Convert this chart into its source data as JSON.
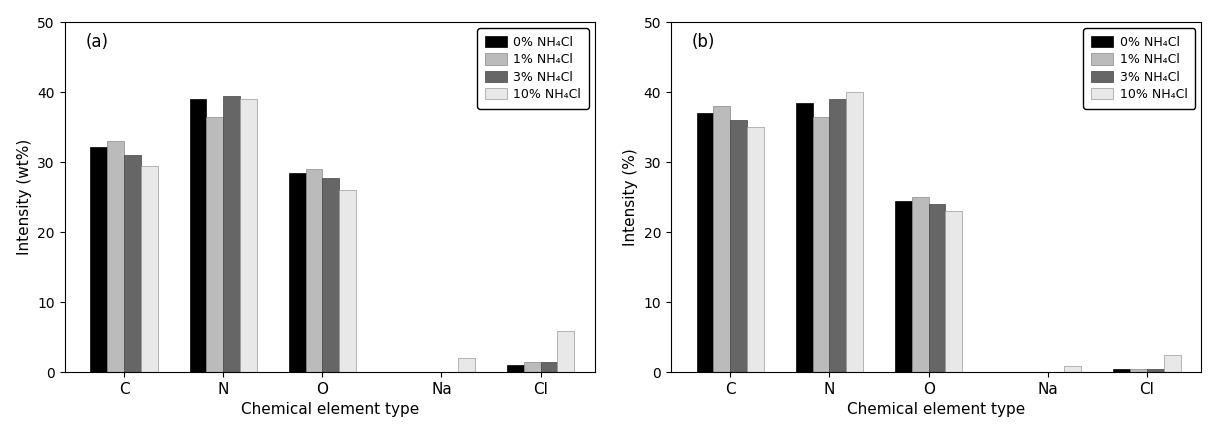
{
  "chart_a": {
    "title": "(a)",
    "ylabel": "Intensity (wt%)",
    "xlabel": "Chemical element type",
    "categories": [
      "C",
      "N",
      "O",
      "Na",
      "Cl"
    ],
    "series": {
      "0% NH₄Cl": [
        32.2,
        39.0,
        28.5,
        0.0,
        1.0
      ],
      "1% NH₄Cl": [
        33.0,
        36.5,
        29.0,
        0.0,
        1.4
      ],
      "3% NH₄Cl": [
        31.0,
        39.5,
        27.8,
        0.0,
        1.5
      ],
      "10% NH₄Cl": [
        29.5,
        39.0,
        26.0,
        2.0,
        5.8
      ]
    },
    "ylim": [
      0,
      50
    ]
  },
  "chart_b": {
    "title": "(b)",
    "ylabel": "Intensity (%)",
    "xlabel": "Chemical element type",
    "categories": [
      "C",
      "N",
      "O",
      "Na",
      "Cl"
    ],
    "series": {
      "0% NH₄Cl": [
        37.0,
        38.5,
        24.5,
        0.0,
        0.5
      ],
      "1% NH₄Cl": [
        38.0,
        36.5,
        25.0,
        0.0,
        0.5
      ],
      "3% NH₄Cl": [
        36.0,
        39.0,
        24.0,
        0.0,
        0.5
      ],
      "10% NH₄Cl": [
        35.0,
        40.0,
        23.0,
        0.8,
        2.5
      ]
    },
    "ylim": [
      0,
      50
    ]
  },
  "legend_labels": [
    "0% NH₄Cl",
    "1% NH₄Cl",
    "3% NH₄Cl",
    "10% NH₄Cl"
  ],
  "bar_colors": [
    "#000000",
    "#bbbbbb",
    "#666666",
    "#e8e8e8"
  ],
  "bar_edgecolors": [
    "#000000",
    "#888888",
    "#444444",
    "#999999"
  ],
  "yticks": [
    0,
    10,
    20,
    30,
    40,
    50
  ]
}
